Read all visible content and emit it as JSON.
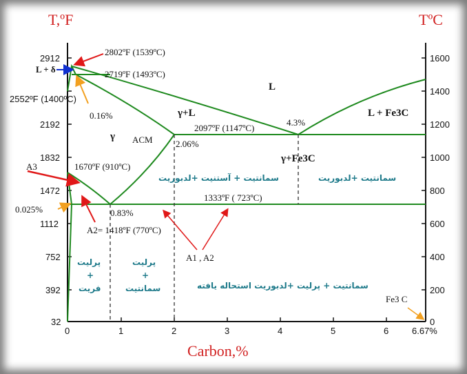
{
  "axes": {
    "left_title": "T,ºF",
    "right_title": "TºC",
    "x_title": "Carbon,%",
    "left_ticks": [
      "2912",
      "2552ºF (1400ºC)",
      "2192",
      "1832",
      "1472",
      "1112",
      "752",
      "392",
      "32"
    ],
    "right_ticks": [
      "1600",
      "1400",
      "1200",
      "1000",
      "800",
      "600",
      "400",
      "200",
      "0"
    ],
    "x_ticks": [
      "0",
      "1",
      "2",
      "3",
      "4",
      "5",
      "6",
      "6.67%"
    ]
  },
  "annotations": {
    "a_2802": "2802ºF (1539ºC)",
    "a_2719": "2719ºF (1493ºC)",
    "a_lplusdelta": "L + δ",
    "a_016": "0.16%",
    "a_2097": "2097ºF (1147ºC)",
    "a_206": "2.06%",
    "a_43": "4.3%",
    "a_acm": "ACM",
    "a_a3": "A3",
    "a_1670": "1670ºF (910ºC)",
    "a_0025": "0.025%",
    "a_083": "0.83%",
    "a_a2": "A2= 1418ºF (770ºC)",
    "a_1333": "1333ºF ( 723ºC)",
    "a_a1a2": "A1 , A2",
    "a_fe3c": "Fe3 C"
  },
  "phases": {
    "L": "L",
    "gammaL": "γ+L",
    "LFe3C": "L + Fe3C",
    "gamma": "γ",
    "gammaFe3C": "γ+Fe3C"
  },
  "persian": {
    "cementite_austenite_ledeburite": "سمانتیت + آستنیت +لدبوریت",
    "cementite_ledeburite": "سمانتیت +لدبوریت",
    "pearlite_ferrite_1": "پرلیت",
    "pearlite_ferrite_2": "+",
    "pearlite_ferrite_3": "فریت",
    "pearlite_cementite_1": "پرلیت",
    "pearlite_cementite_2": "+",
    "pearlite_cementite_3": "سمانتیت",
    "bottom_right": "سمانتیت + پرلیت +لدبوریت استحاله یافته"
  },
  "colors": {
    "phase_line": "#1f8a1f",
    "label_red": "#d12020",
    "arrow_red": "#e01818",
    "arrow_orange": "#f2a020",
    "arrow_blue": "#1030d0",
    "persian": "#1e7a8a"
  }
}
